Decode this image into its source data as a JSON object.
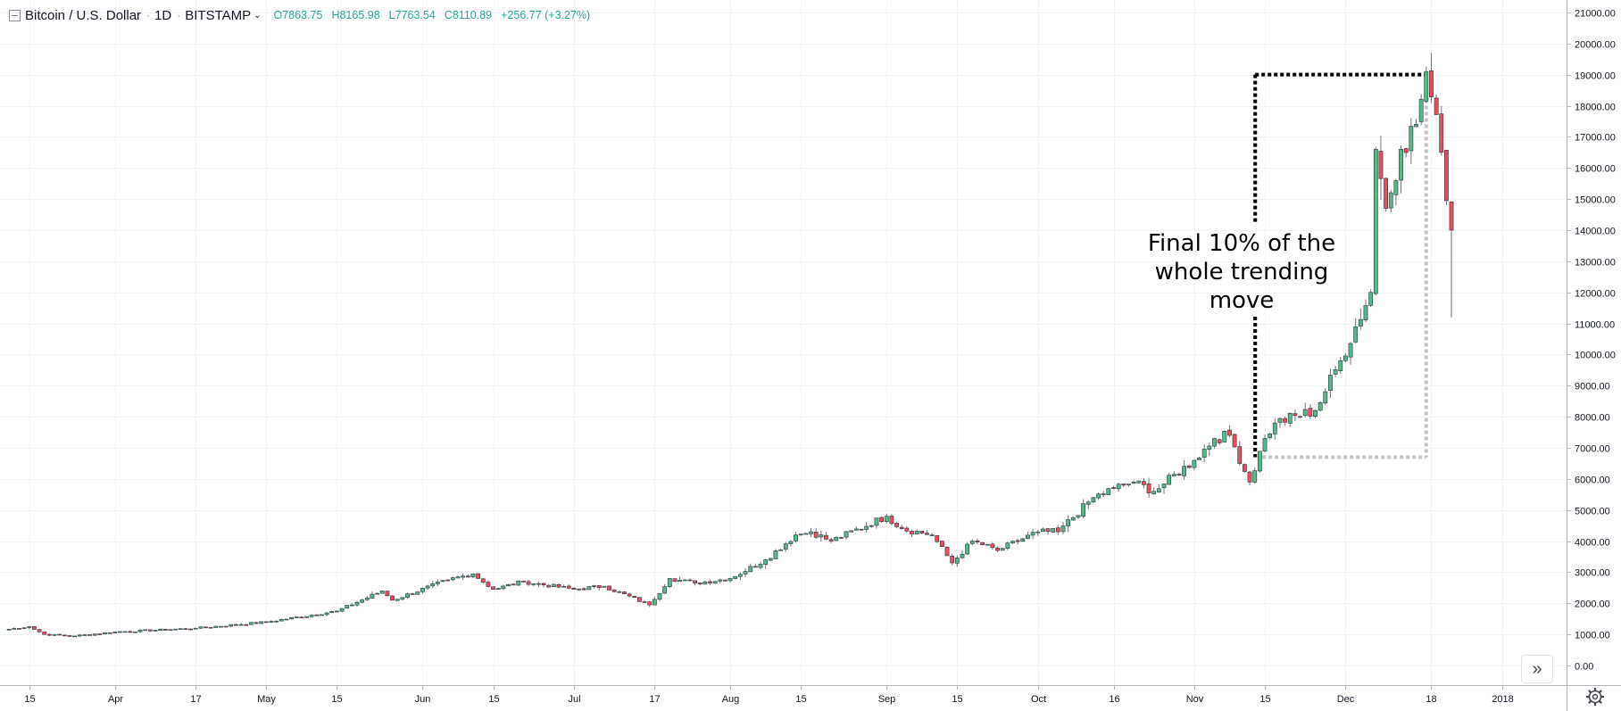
{
  "header": {
    "symbol": "Bitcoin / U.S. Dollar",
    "interval": "1D",
    "exchange": "BITSTAMP",
    "open": "O7863.75",
    "high": "H8165.98",
    "low": "L7763.54",
    "close": "C8110.89",
    "change": "+256.77 (+3.27%)",
    "ohlc_color": "#26a69a"
  },
  "annotation": {
    "lines": [
      "Final 10% of the",
      "whole trending",
      "move"
    ],
    "bracket_top_price": 19000,
    "bracket_bottom_price": 6700,
    "bracket_start": "2017-11-13",
    "bracket_end": "2017-12-17"
  },
  "chart_data": {
    "type": "candlestick",
    "x_start": "2017-03-10",
    "ylim": [
      -630,
      21400
    ],
    "y_ticks": [
      "21000.00",
      "20000.00",
      "19000.00",
      "18000.00",
      "17000.00",
      "16000.00",
      "15000.00",
      "14000.00",
      "13000.00",
      "12000.00",
      "11000.00",
      "10000.00",
      "9000.00",
      "8000.00",
      "7000.00",
      "6000.00",
      "5000.00",
      "4000.00",
      "3000.00",
      "2000.00",
      "1000.00",
      "0.00"
    ],
    "x_ticks": [
      {
        "label": "15",
        "date": "2017-03-15"
      },
      {
        "label": "Apr",
        "date": "2017-04-01"
      },
      {
        "label": "17",
        "date": "2017-04-17"
      },
      {
        "label": "May",
        "date": "2017-05-01"
      },
      {
        "label": "15",
        "date": "2017-05-15"
      },
      {
        "label": "Jun",
        "date": "2017-06-01"
      },
      {
        "label": "15",
        "date": "2017-06-15"
      },
      {
        "label": "Jul",
        "date": "2017-07-01"
      },
      {
        "label": "17",
        "date": "2017-07-17"
      },
      {
        "label": "Aug",
        "date": "2017-08-01"
      },
      {
        "label": "15",
        "date": "2017-08-15"
      },
      {
        "label": "Sep",
        "date": "2017-09-01"
      },
      {
        "label": "15",
        "date": "2017-09-15"
      },
      {
        "label": "Oct",
        "date": "2017-10-01"
      },
      {
        "label": "16",
        "date": "2017-10-16"
      },
      {
        "label": "Nov",
        "date": "2017-11-01"
      },
      {
        "label": "15",
        "date": "2017-11-15"
      },
      {
        "label": "Dec",
        "date": "2017-12-01"
      },
      {
        "label": "18",
        "date": "2017-12-18"
      },
      {
        "label": "2018",
        "date": "2018-01-01"
      }
    ],
    "close_anchors": [
      {
        "date": "2017-03-10",
        "price": 1150
      },
      {
        "date": "2017-03-15",
        "price": 1250
      },
      {
        "date": "2017-03-18",
        "price": 1000
      },
      {
        "date": "2017-03-24",
        "price": 950
      },
      {
        "date": "2017-04-01",
        "price": 1080
      },
      {
        "date": "2017-04-17",
        "price": 1200
      },
      {
        "date": "2017-05-01",
        "price": 1400
      },
      {
        "date": "2017-05-15",
        "price": 1750
      },
      {
        "date": "2017-05-24",
        "price": 2400
      },
      {
        "date": "2017-05-26",
        "price": 2100
      },
      {
        "date": "2017-06-06",
        "price": 2750
      },
      {
        "date": "2017-06-11",
        "price": 2950
      },
      {
        "date": "2017-06-15",
        "price": 2450
      },
      {
        "date": "2017-06-21",
        "price": 2700
      },
      {
        "date": "2017-07-01",
        "price": 2450
      },
      {
        "date": "2017-07-07",
        "price": 2550
      },
      {
        "date": "2017-07-16",
        "price": 1950
      },
      {
        "date": "2017-07-20",
        "price": 2800
      },
      {
        "date": "2017-07-25",
        "price": 2650
      },
      {
        "date": "2017-08-01",
        "price": 2800
      },
      {
        "date": "2017-08-08",
        "price": 3400
      },
      {
        "date": "2017-08-14",
        "price": 4200
      },
      {
        "date": "2017-08-17",
        "price": 4300
      },
      {
        "date": "2017-08-21",
        "price": 4000
      },
      {
        "date": "2017-09-01",
        "price": 4800
      },
      {
        "date": "2017-09-04",
        "price": 4400
      },
      {
        "date": "2017-09-10",
        "price": 4200
      },
      {
        "date": "2017-09-14",
        "price": 3300
      },
      {
        "date": "2017-09-18",
        "price": 4000
      },
      {
        "date": "2017-09-23",
        "price": 3700
      },
      {
        "date": "2017-10-01",
        "price": 4300
      },
      {
        "date": "2017-10-05",
        "price": 4300
      },
      {
        "date": "2017-10-12",
        "price": 5400
      },
      {
        "date": "2017-10-16",
        "price": 5700
      },
      {
        "date": "2017-10-20",
        "price": 5900
      },
      {
        "date": "2017-10-24",
        "price": 5600
      },
      {
        "date": "2017-11-01",
        "price": 6600
      },
      {
        "date": "2017-11-05",
        "price": 7300
      },
      {
        "date": "2017-11-08",
        "price": 7400
      },
      {
        "date": "2017-11-12",
        "price": 5900
      },
      {
        "date": "2017-11-15",
        "price": 7300
      },
      {
        "date": "2017-11-17",
        "price": 7800
      },
      {
        "date": "2017-11-25",
        "price": 8200
      },
      {
        "date": "2017-11-30",
        "price": 9800
      },
      {
        "date": "2017-12-06",
        "price": 12000
      },
      {
        "date": "2017-12-07",
        "price": 16600
      },
      {
        "date": "2017-12-09",
        "price": 14700
      },
      {
        "date": "2017-12-12",
        "price": 16600
      },
      {
        "date": "2017-12-15",
        "price": 17400
      },
      {
        "date": "2017-12-17",
        "price": 19100
      },
      {
        "date": "2017-12-20",
        "price": 16500
      },
      {
        "date": "2017-12-22",
        "price": 14000
      }
    ],
    "up_color": "#53b987",
    "down_color": "#eb4d5c",
    "grid": true
  }
}
